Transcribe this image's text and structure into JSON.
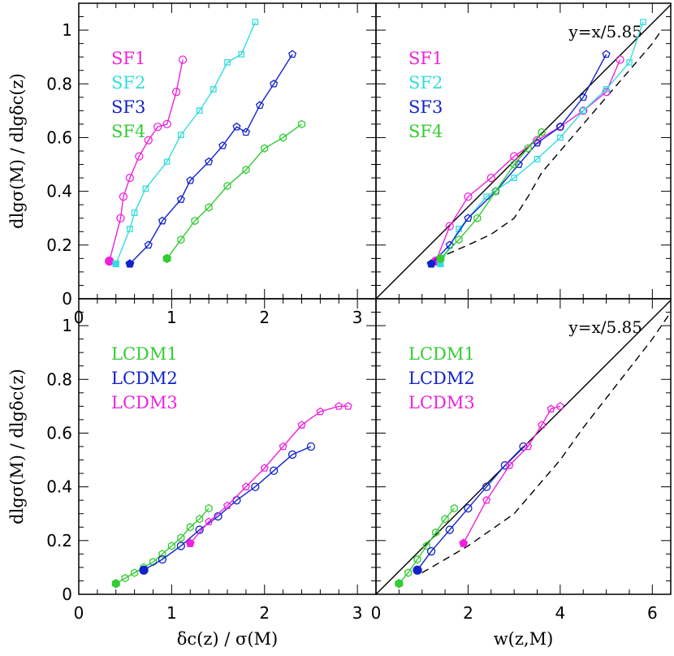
{
  "colors": {
    "SF1": "#ee22dd",
    "SF2": "#33dddd",
    "SF3": "#1122cc",
    "SF4": "#33cc33",
    "LCDM1": "#33cc33",
    "LCDM2": "#1122cc",
    "LCDM3": "#ee22dd"
  },
  "chart_data": [
    {
      "type": "line",
      "panel": "top-left",
      "xlim": [
        0,
        3.2
      ],
      "ylim": [
        0,
        1.1
      ],
      "xticks": [
        "0",
        "1",
        "2",
        "3"
      ],
      "yticks": [
        "0",
        "0.2",
        "0.4",
        "0.6",
        "0.8",
        "1"
      ],
      "xlabel": "",
      "ylabel": "dlgσ(M)  /  dlgδc(z)",
      "annotation": "",
      "legend": [
        "SF1",
        "SF2",
        "SF3",
        "SF4"
      ],
      "legend_position": "top-left",
      "series": [
        {
          "name": "SF1",
          "color": "#ee22dd",
          "marker": "circle",
          "x": [
            0.33,
            0.45,
            0.48,
            0.55,
            0.65,
            0.75,
            0.85,
            0.95,
            1.05,
            1.12
          ],
          "y": [
            0.14,
            0.3,
            0.38,
            0.45,
            0.53,
            0.59,
            0.64,
            0.65,
            0.77,
            0.89
          ]
        },
        {
          "name": "SF2",
          "color": "#33dddd",
          "marker": "square",
          "x": [
            0.4,
            0.55,
            0.6,
            0.72,
            0.95,
            1.1,
            1.3,
            1.45,
            1.6,
            1.75,
            1.9
          ],
          "y": [
            0.13,
            0.26,
            0.32,
            0.41,
            0.51,
            0.61,
            0.7,
            0.78,
            0.88,
            0.91,
            1.03
          ]
        },
        {
          "name": "SF3",
          "color": "#1122cc",
          "marker": "pentagon",
          "x": [
            0.55,
            0.75,
            0.9,
            1.1,
            1.2,
            1.4,
            1.55,
            1.7,
            1.8,
            1.95,
            2.1,
            2.3
          ],
          "y": [
            0.13,
            0.2,
            0.29,
            0.37,
            0.44,
            0.51,
            0.57,
            0.64,
            0.62,
            0.72,
            0.8,
            0.91
          ]
        },
        {
          "name": "SF4",
          "color": "#33cc33",
          "marker": "hexagon",
          "x": [
            0.95,
            1.1,
            1.25,
            1.4,
            1.6,
            1.8,
            2.0,
            2.2,
            2.4
          ],
          "y": [
            0.15,
            0.22,
            0.29,
            0.34,
            0.42,
            0.48,
            0.56,
            0.6,
            0.65
          ]
        }
      ]
    },
    {
      "type": "line",
      "panel": "top-right",
      "xlim": [
        0,
        6.4
      ],
      "ylim": [
        0,
        1.1
      ],
      "xticks": [],
      "yticks": [],
      "xlabel": "",
      "ylabel": "",
      "annotation": "y=x/5.85",
      "legend": [
        "SF1",
        "SF2",
        "SF3",
        "SF4"
      ],
      "legend_position": "top-left",
      "reference_line_slope": 0.171,
      "dashed_curve": {
        "x": [
          1.3,
          1.6,
          2.0,
          2.5,
          3.0,
          3.3,
          3.6,
          4.0,
          4.5,
          5.0,
          5.5,
          6.0,
          6.2
        ],
        "y": [
          0.15,
          0.17,
          0.2,
          0.24,
          0.3,
          0.38,
          0.47,
          0.55,
          0.65,
          0.75,
          0.85,
          0.95,
          1.0
        ]
      },
      "series": [
        {
          "name": "SF1",
          "color": "#ee22dd",
          "marker": "circle",
          "x": [
            1.3,
            1.6,
            2.0,
            2.5,
            3.0,
            3.5,
            4.0,
            4.5,
            5.0,
            5.3
          ],
          "y": [
            0.14,
            0.27,
            0.38,
            0.45,
            0.53,
            0.59,
            0.64,
            0.7,
            0.77,
            0.89
          ]
        },
        {
          "name": "SF2",
          "color": "#33dddd",
          "marker": "square",
          "x": [
            1.4,
            1.8,
            2.4,
            3.0,
            3.5,
            4.0,
            4.5,
            5.0,
            5.5,
            5.8
          ],
          "y": [
            0.13,
            0.26,
            0.38,
            0.45,
            0.52,
            0.6,
            0.7,
            0.78,
            0.88,
            1.03
          ]
        },
        {
          "name": "SF3",
          "color": "#1122cc",
          "marker": "pentagon",
          "x": [
            1.2,
            1.6,
            2.0,
            2.6,
            3.1,
            3.5,
            4.0,
            4.5,
            5.0
          ],
          "y": [
            0.13,
            0.2,
            0.3,
            0.4,
            0.5,
            0.58,
            0.64,
            0.75,
            0.91
          ]
        },
        {
          "name": "SF4",
          "color": "#33cc33",
          "marker": "hexagon",
          "x": [
            1.4,
            1.8,
            2.2,
            2.6,
            3.0,
            3.3,
            3.6
          ],
          "y": [
            0.15,
            0.22,
            0.3,
            0.4,
            0.5,
            0.56,
            0.62
          ]
        }
      ]
    },
    {
      "type": "line",
      "panel": "bottom-left",
      "xlim": [
        0,
        3.2
      ],
      "ylim": [
        0,
        1.1
      ],
      "xticks": [
        "0",
        "1",
        "2",
        "3"
      ],
      "yticks": [
        "0",
        "0.2",
        "0.4",
        "0.6",
        "0.8",
        "1"
      ],
      "xlabel": "δc(z)  /  σ(M)",
      "ylabel": "dlgσ(M)  /  dlgδc(z)",
      "annotation": "",
      "legend": [
        "LCDM1",
        "LCDM2",
        "LCDM3"
      ],
      "legend_position": "top-left",
      "series": [
        {
          "name": "LCDM1",
          "color": "#33cc33",
          "marker": "hexagon",
          "x": [
            0.4,
            0.5,
            0.6,
            0.7,
            0.8,
            0.9,
            1.0,
            1.1,
            1.2,
            1.3,
            1.4
          ],
          "y": [
            0.04,
            0.06,
            0.08,
            0.1,
            0.12,
            0.15,
            0.18,
            0.21,
            0.25,
            0.28,
            0.32
          ]
        },
        {
          "name": "LCDM2",
          "color": "#1122cc",
          "marker": "circle",
          "x": [
            0.7,
            0.9,
            1.1,
            1.3,
            1.5,
            1.7,
            1.9,
            2.1,
            2.3,
            2.5
          ],
          "y": [
            0.09,
            0.13,
            0.18,
            0.24,
            0.29,
            0.35,
            0.4,
            0.46,
            0.52,
            0.55
          ]
        },
        {
          "name": "LCDM3",
          "color": "#ee22dd",
          "marker": "pentagon",
          "x": [
            1.2,
            1.4,
            1.6,
            1.8,
            2.0,
            2.2,
            2.4,
            2.6,
            2.8,
            2.9
          ],
          "y": [
            0.19,
            0.27,
            0.33,
            0.4,
            0.47,
            0.55,
            0.63,
            0.68,
            0.7,
            0.7
          ]
        }
      ]
    },
    {
      "type": "line",
      "panel": "bottom-right",
      "xlim": [
        0,
        6.4
      ],
      "ylim": [
        0,
        1.1
      ],
      "xticks": [
        "0",
        "2",
        "4",
        "6"
      ],
      "yticks": [],
      "xlabel": "w(z,M)",
      "ylabel": "",
      "annotation": "y=x/5.85",
      "legend": [
        "LCDM1",
        "LCDM2",
        "LCDM3"
      ],
      "legend_position": "top-left",
      "reference_line_slope": 0.171,
      "dashed_curve": {
        "x": [
          1.0,
          1.5,
          2.0,
          2.5,
          3.0,
          3.5,
          4.0,
          4.5,
          5.0,
          5.5,
          6.0,
          6.4
        ],
        "y": [
          0.08,
          0.13,
          0.18,
          0.24,
          0.3,
          0.4,
          0.5,
          0.62,
          0.73,
          0.84,
          0.95,
          1.05
        ]
      },
      "series": [
        {
          "name": "LCDM1",
          "color": "#33cc33",
          "marker": "hexagon",
          "x": [
            0.5,
            0.7,
            0.9,
            1.1,
            1.3,
            1.5,
            1.7
          ],
          "y": [
            0.04,
            0.08,
            0.13,
            0.18,
            0.23,
            0.28,
            0.32
          ]
        },
        {
          "name": "LCDM2",
          "color": "#1122cc",
          "marker": "circle",
          "x": [
            0.9,
            1.2,
            1.6,
            2.0,
            2.4,
            2.8,
            3.2
          ],
          "y": [
            0.09,
            0.16,
            0.24,
            0.32,
            0.4,
            0.48,
            0.55
          ]
        },
        {
          "name": "LCDM3",
          "color": "#ee22dd",
          "marker": "pentagon",
          "x": [
            1.9,
            2.4,
            2.9,
            3.3,
            3.6,
            3.8,
            4.0
          ],
          "y": [
            0.19,
            0.35,
            0.48,
            0.55,
            0.63,
            0.69,
            0.7
          ]
        }
      ]
    }
  ]
}
